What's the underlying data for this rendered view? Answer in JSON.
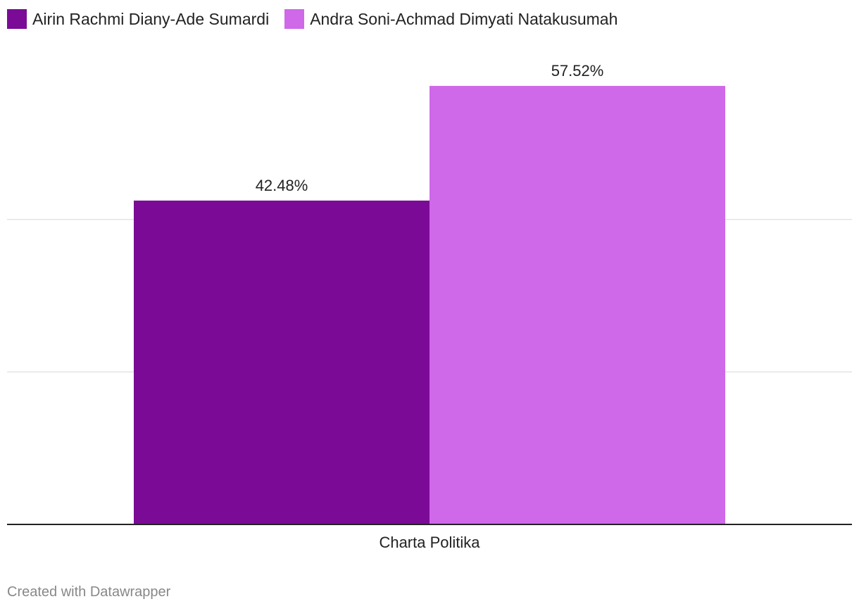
{
  "chart_data": {
    "type": "bar",
    "categories": [
      "Charta Politika"
    ],
    "series": [
      {
        "name": "Airin Rachmi Diany-Ade Sumardi",
        "values": [
          42.48
        ],
        "label": "42.48%",
        "color": "#7b0b96"
      },
      {
        "name": "Andra Soni-Achmad Dimyati Natakusumah",
        "values": [
          57.52
        ],
        "label": "57.52%",
        "color": "#cf68e9"
      }
    ],
    "ylim": [
      0,
      60
    ],
    "gridlines": [
      20,
      40
    ],
    "grid": true,
    "legend_position": "top-left",
    "title": "",
    "xlabel": "",
    "ylabel": ""
  },
  "footer": {
    "credit": "Created with Datawrapper"
  }
}
